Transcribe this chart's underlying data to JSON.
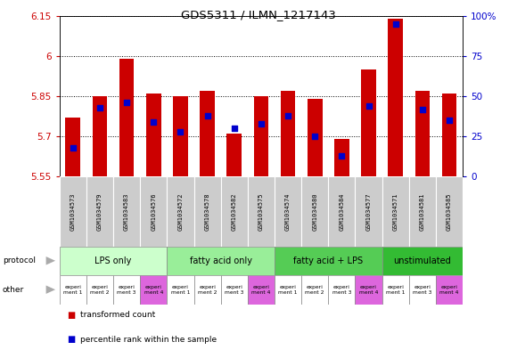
{
  "title": "GDS5311 / ILMN_1217143",
  "samples": [
    "GSM1034573",
    "GSM1034579",
    "GSM1034583",
    "GSM1034576",
    "GSM1034572",
    "GSM1034578",
    "GSM1034582",
    "GSM1034575",
    "GSM1034574",
    "GSM1034580",
    "GSM1034584",
    "GSM1034577",
    "GSM1034571",
    "GSM1034581",
    "GSM1034585"
  ],
  "transformed_count": [
    5.77,
    5.85,
    5.99,
    5.86,
    5.85,
    5.87,
    5.71,
    5.85,
    5.87,
    5.84,
    5.69,
    5.95,
    6.14,
    5.87,
    5.86
  ],
  "percentile_rank": [
    18,
    43,
    46,
    34,
    28,
    38,
    30,
    33,
    38,
    25,
    13,
    44,
    95,
    42,
    35
  ],
  "ylim_left": [
    5.55,
    6.15
  ],
  "ylim_right": [
    0,
    100
  ],
  "yticks_left": [
    5.55,
    5.7,
    5.85,
    6.0,
    6.15
  ],
  "ytick_labels_left": [
    "5.55",
    "5.7",
    "5.85",
    "6",
    "6.15"
  ],
  "yticks_right": [
    0,
    25,
    50,
    75,
    100
  ],
  "ytick_labels_right": [
    "0",
    "25",
    "50",
    "75",
    "100%"
  ],
  "groups": [
    {
      "label": "LPS only",
      "start": 0,
      "end": 4,
      "color": "#ccffcc"
    },
    {
      "label": "fatty acid only",
      "start": 4,
      "end": 8,
      "color": "#aaeebb"
    },
    {
      "label": "fatty acid + LPS",
      "start": 8,
      "end": 12,
      "color": "#55cc55"
    },
    {
      "label": "unstimulated",
      "start": 12,
      "end": 15,
      "color": "#33bb33"
    }
  ],
  "other_labels": [
    "experi\nment 1",
    "experi\nment 2",
    "experi\nment 3",
    "experi\nment 4",
    "experi\nment 1",
    "experi\nment 2",
    "experi\nment 3",
    "experi\nment 4",
    "experi\nment 1",
    "experi\nment 2",
    "experi\nment 3",
    "experi\nment 4",
    "experi\nment 1",
    "experi\nment 3",
    "experi\nment 4"
  ],
  "other_colors": [
    "#ee88ee",
    "#ee88ee",
    "#ee88ee",
    "#ee88ee",
    "#ee88ee",
    "#ee88ee",
    "#ee88ee",
    "#ee88ee",
    "#ee88ee",
    "#ee88ee",
    "#ee88ee",
    "#ee88ee",
    "#ee88ee",
    "#ee88ee",
    "#ee88ee"
  ],
  "other_colors_white": [
    true,
    true,
    true,
    false,
    true,
    true,
    true,
    false,
    true,
    true,
    true,
    false,
    true,
    true,
    false
  ],
  "bar_color": "#cc0000",
  "dot_color": "#0000cc",
  "bar_bottom": 5.55,
  "bar_width": 0.55,
  "sample_bg": "#cccccc",
  "axis_color_left": "#cc0000",
  "axis_color_right": "#0000cc"
}
